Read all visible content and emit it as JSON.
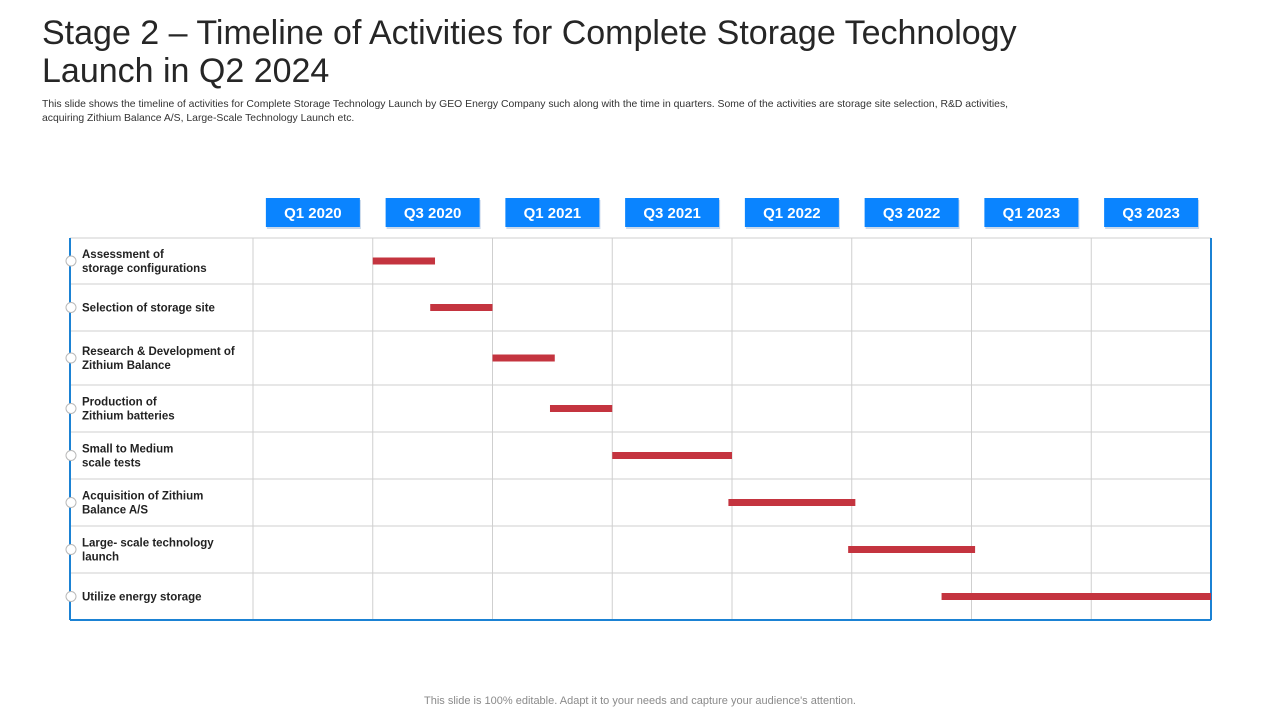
{
  "slide": {
    "title_line1": "Stage 2 – Timeline of Activities for Complete Storage Technology",
    "title_line2": "Launch in Q2 2024",
    "description_line1": "This slide shows the timeline of activities for Complete Storage Technology Launch by GEO Energy Company  such along with the time in quarters. Some of the activities are storage site selection, R&D activities,",
    "description_line2": "acquiring Zithium Balance A/S, Large-Scale Technology Launch etc.",
    "footer": "This slide is 100% editable. Adapt it to your needs and capture your audience's attention."
  },
  "colors": {
    "header_box": "#0a84ff",
    "bar": "#c4343f",
    "frame": "#1b82d4",
    "grid": "#cfcfcf"
  },
  "chart_data": {
    "type": "bar",
    "orientation": "horizontal-gantt",
    "categories": [
      "Q1 2020",
      "Q3 2020",
      "Q1 2021",
      "Q3 2021",
      "Q1 2022",
      "Q3 2022",
      "Q1 2023",
      "Q3 2023"
    ],
    "tasks": [
      {
        "label": [
          "Assessment of",
          "storage configurations"
        ],
        "start": 1.0,
        "end": 1.52
      },
      {
        "label": [
          "Selection of storage site"
        ],
        "start": 1.48,
        "end": 2.0
      },
      {
        "label": [
          "Research & Development of",
          "Zithium Balance"
        ],
        "start": 2.0,
        "end": 2.52
      },
      {
        "label": [
          "Production of",
          "Zithium batteries"
        ],
        "start": 2.48,
        "end": 3.0
      },
      {
        "label": [
          "Small to Medium",
          "scale tests"
        ],
        "start": 3.0,
        "end": 4.0
      },
      {
        "label": [
          "Acquisition of Zithium",
          "Balance A/S"
        ],
        "start": 3.97,
        "end": 5.03
      },
      {
        "label": [
          "Large- scale technology",
          "launch"
        ],
        "start": 4.97,
        "end": 6.03
      },
      {
        "label": [
          "Utilize energy storage"
        ],
        "start": 5.75,
        "end": 8.0
      }
    ]
  }
}
